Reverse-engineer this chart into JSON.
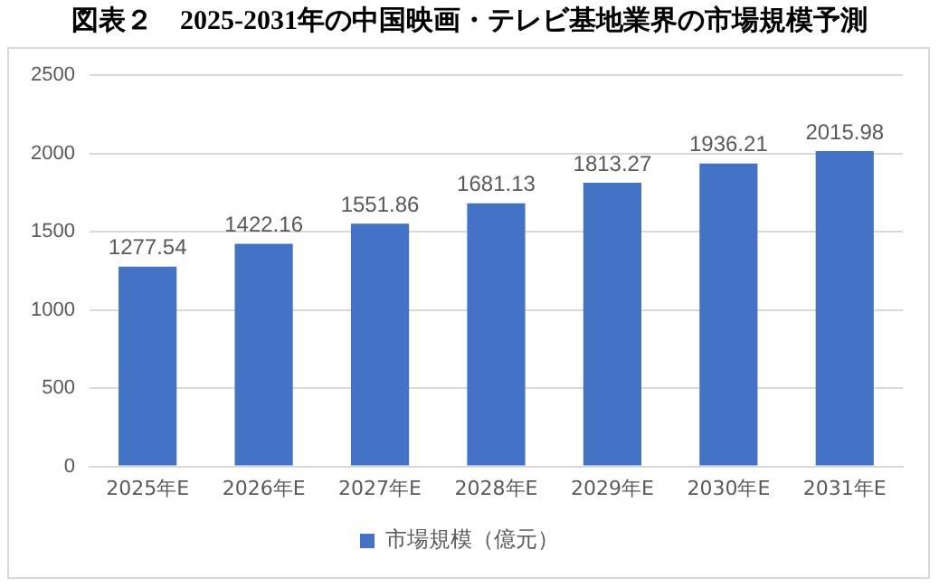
{
  "chart_data": {
    "type": "bar",
    "title": "図表２　2025-2031年の中国映画・テレビ基地業界の市場規模予測",
    "categories": [
      "2025年E",
      "2026年E",
      "2027年E",
      "2028年E",
      "2029年E",
      "2030年E",
      "2031年E"
    ],
    "series": [
      {
        "name": "市場規模（億元）",
        "color": "#4472c4",
        "values": [
          1277.54,
          1422.16,
          1551.86,
          1681.13,
          1813.27,
          1936.21,
          2015.98
        ]
      }
    ],
    "ylim": [
      0,
      2500
    ],
    "yticks": [
      0,
      500,
      1000,
      1500,
      2000,
      2500
    ],
    "grid": "y",
    "legend": "bottom",
    "data_labels": true
  }
}
